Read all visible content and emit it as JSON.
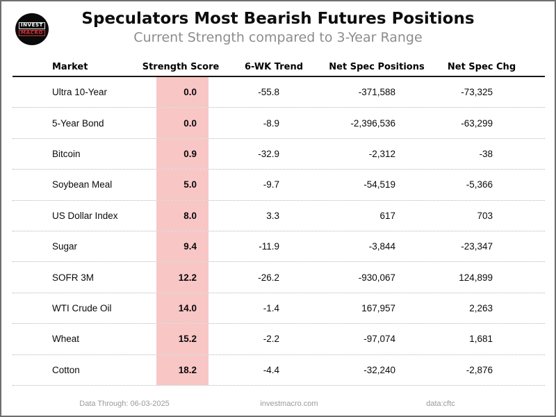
{
  "logo": {
    "line1": "INVEST",
    "line2": "MACRO"
  },
  "chart_data": {
    "type": "table",
    "title": "Speculators Most Bearish Futures Positions",
    "subtitle": "Current Strength compared to 3-Year Range",
    "columns": [
      "Market",
      "Strength Score",
      "6-WK Trend",
      "Net Spec Positions",
      "Net Spec Chg"
    ],
    "rows": [
      [
        "Ultra 10-Year",
        "0.0",
        "-55.8",
        "-371,588",
        "-73,325"
      ],
      [
        "5-Year Bond",
        "0.0",
        "-8.9",
        "-2,396,536",
        "-63,299"
      ],
      [
        "Bitcoin",
        "0.9",
        "-32.9",
        "-2,312",
        "-38"
      ],
      [
        "Soybean Meal",
        "5.0",
        "-9.7",
        "-54,519",
        "-5,366"
      ],
      [
        "US Dollar Index",
        "8.0",
        "3.3",
        "617",
        "703"
      ],
      [
        "Sugar",
        "9.4",
        "-11.9",
        "-3,844",
        "-23,347"
      ],
      [
        "SOFR 3M",
        "12.2",
        "-26.2",
        "-930,067",
        "124,899"
      ],
      [
        "WTI Crude Oil",
        "14.0",
        "-1.4",
        "167,957",
        "2,263"
      ],
      [
        "Wheat",
        "15.2",
        "-2.2",
        "-97,074",
        "1,681"
      ],
      [
        "Cotton",
        "18.2",
        "-4.4",
        "-32,240",
        "-2,876"
      ]
    ],
    "strength_scores_numeric": [
      0.0,
      0.0,
      0.9,
      5.0,
      8.0,
      9.4,
      12.2,
      14.0,
      15.2,
      18.2
    ],
    "trend_6wk_numeric": [
      -55.8,
      -8.9,
      -32.9,
      -9.7,
      3.3,
      -11.9,
      -26.2,
      -1.4,
      -2.2,
      -4.4
    ],
    "net_spec_positions_numeric": [
      -371588,
      -2396536,
      -2312,
      -54519,
      617,
      -3844,
      -930067,
      167957,
      -97074,
      -32240
    ],
    "net_spec_chg_numeric": [
      -73325,
      -63299,
      -38,
      -5366,
      703,
      -23347,
      124899,
      2263,
      1681,
      -2876
    ],
    "layout_hints": {
      "grid": "dotted row separators",
      "highlight_column": "Strength Score"
    }
  },
  "footer": {
    "data_through": "Data Through: 06-03-2025",
    "website": "investmacro.com",
    "source": "data:cftc"
  },
  "colors": {
    "score_highlight": "#f9c6c6",
    "logo_red": "#d13438",
    "subtitle_gray": "#8c8c8c",
    "footer_gray": "#999999"
  }
}
